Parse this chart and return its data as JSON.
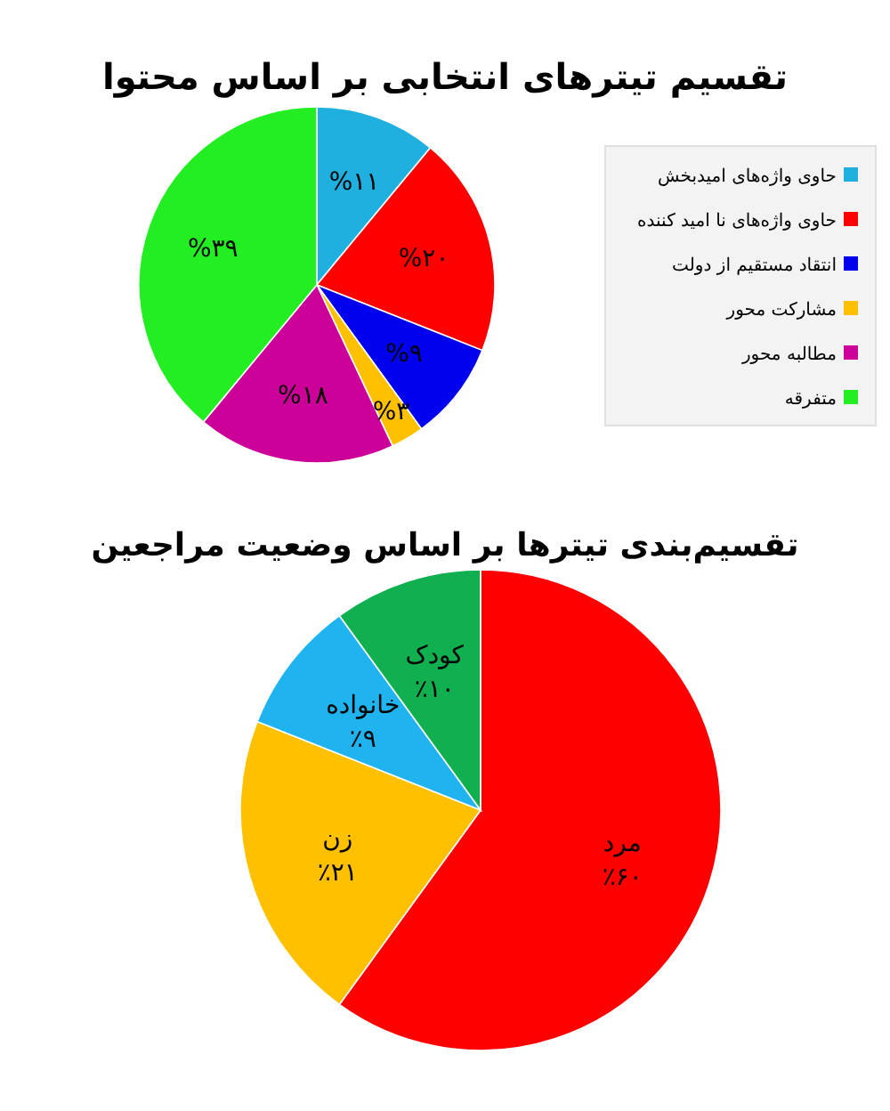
{
  "chart_data": [
    {
      "type": "pie",
      "title": "تقسیم تیترهای انتخابی بر اساس محتوا",
      "categories": [
        "حاوی واژه‌های امیدبخش",
        "حاوی واژه‌های نا امید کننده",
        "انتقاد مستقیم از دولت",
        "مشارکت محور",
        "مطالبه محور",
        "متفرقه"
      ],
      "values": [
        11,
        20,
        9,
        3,
        18,
        39
      ],
      "value_labels": [
        "%۱۱",
        "%۲۰",
        "%۹",
        "%۳",
        "%۱۸",
        "%۳۹"
      ],
      "colors": [
        "#1fb0e0",
        "#ff0000",
        "#0000ee",
        "#ffc000",
        "#cc0099",
        "#22ee22"
      ],
      "legend": "right"
    },
    {
      "type": "pie",
      "title": "تقسیم‌بندی تیترها بر اساس وضعیت مراجعین",
      "categories": [
        "مرد",
        "زن",
        "خانواده",
        "کودک"
      ],
      "values": [
        60,
        21,
        9,
        10
      ],
      "value_labels": [
        "٪۶۰",
        "٪۲۱",
        "٪۹",
        "٪۱۰"
      ],
      "colors": [
        "#ff0000",
        "#ffc000",
        "#1fb4f0",
        "#10b050"
      ]
    }
  ]
}
